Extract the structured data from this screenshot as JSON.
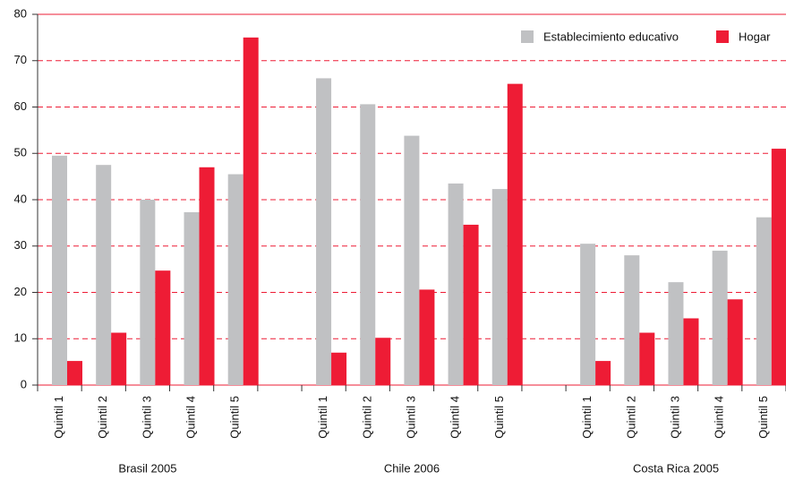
{
  "chart_data": {
    "type": "bar",
    "categories": [
      "Quintil 1",
      "Quintil 2",
      "Quintil 3",
      "Quintil 4",
      "Quintil 5",
      null,
      "Quintil 1",
      "Quintil 2",
      "Quintil 3",
      "Quintil 4",
      "Quintil 5",
      null,
      "Quintil 1",
      "Quintil 2",
      "Quintil 3",
      "Quintil 4",
      "Quintil 5"
    ],
    "groups": [
      "Brasil 2005",
      "Chile 2006",
      "Costa Rica 2005"
    ],
    "series": [
      {
        "name": "Establecimiento educativo",
        "color": "#c0c1c3",
        "values": [
          49.5,
          47.5,
          40,
          37.3,
          45.5,
          null,
          66.2,
          60.6,
          53.8,
          43.5,
          42.3,
          null,
          30.5,
          28,
          22.2,
          29,
          36.2
        ]
      },
      {
        "name": "Hogar",
        "color": "#ee1c35",
        "values": [
          5.2,
          11.3,
          24.7,
          47,
          75,
          null,
          7,
          10.2,
          20.6,
          34.6,
          65,
          null,
          5.2,
          11.3,
          14.4,
          18.5,
          51
        ]
      }
    ],
    "ylim": [
      0,
      80
    ],
    "yticks": [
      0,
      10,
      20,
      30,
      40,
      50,
      60,
      70,
      80
    ],
    "grid": true,
    "legend": "top-right"
  }
}
